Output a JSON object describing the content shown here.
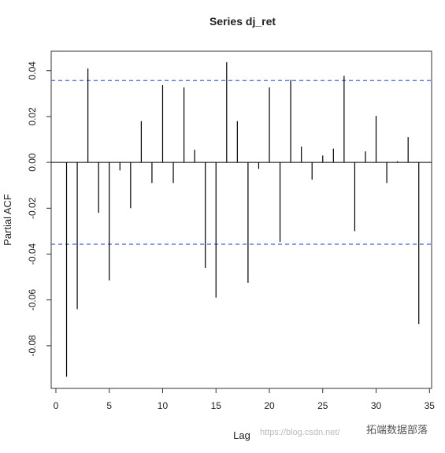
{
  "chart_data": {
    "type": "bar",
    "title": "Series  dj_ret",
    "xlabel": "Lag",
    "ylabel": "Partial ACF",
    "x": [
      1,
      2,
      3,
      4,
      5,
      6,
      7,
      8,
      9,
      10,
      11,
      12,
      13,
      14,
      15,
      16,
      17,
      18,
      19,
      20,
      21,
      22,
      23,
      24,
      25,
      26,
      27,
      28,
      29,
      30,
      31,
      32,
      33,
      34
    ],
    "values": [
      -0.0935,
      -0.064,
      0.041,
      -0.022,
      -0.0515,
      -0.0035,
      -0.02,
      0.018,
      -0.009,
      0.0337,
      -0.009,
      0.0327,
      0.0055,
      -0.046,
      -0.059,
      0.0437,
      0.018,
      -0.0525,
      -0.0028,
      0.0327,
      -0.0347,
      0.036,
      0.0069,
      -0.0075,
      0.003,
      0.006,
      0.0378,
      -0.03,
      0.0048,
      0.0203,
      -0.009,
      0.0005,
      0.011,
      -0.0705
    ],
    "color": "#000000",
    "xlim": [
      -0.44,
      35.2
    ],
    "ylim": [
      -0.0986,
      0.0485
    ],
    "xticks": [
      0,
      5,
      10,
      15,
      20,
      25,
      30,
      35
    ],
    "yticks": [
      0.04,
      0.02,
      {
        "value": 0,
        "label": "0.00"
      },
      -0.02,
      -0.04,
      -0.06,
      -0.08
    ],
    "ci": [
      0.0357,
      -0.0357
    ],
    "ci_color": "#4a5ee8",
    "watermark": [
      "https://blog.csdn.net/",
      "拓端数据部落"
    ]
  }
}
